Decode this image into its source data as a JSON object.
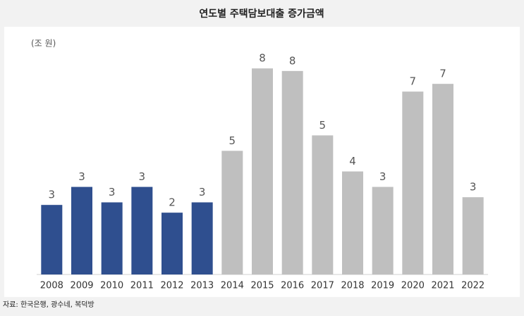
{
  "chart_data": {
    "type": "bar",
    "title": "연도별 주택담보대출 증가금액",
    "unit_label": "(조 원)",
    "source": "자료: 한국은행, 광수네, 복덕방",
    "categories": [
      "2008",
      "2009",
      "2010",
      "2011",
      "2012",
      "2013",
      "2014",
      "2015",
      "2016",
      "2017",
      "2018",
      "2019",
      "2020",
      "2021",
      "2022"
    ],
    "series": [
      {
        "values": [
          2.7,
          3.4,
          2.8,
          3.4,
          2.4,
          2.8,
          4.8,
          8.0,
          7.9,
          5.4,
          4.0,
          3.4,
          7.1,
          7.4,
          3.0
        ],
        "value_labels": [
          "3",
          "3",
          "3",
          "3",
          "2",
          "3",
          "5",
          "8",
          "8",
          "5",
          "4",
          "3",
          "7",
          "7",
          "3"
        ],
        "colors": [
          "#2f4f8f",
          "#2f4f8f",
          "#2f4f8f",
          "#2f4f8f",
          "#2f4f8f",
          "#2f4f8f",
          "#bfbfbf",
          "#bfbfbf",
          "#bfbfbf",
          "#bfbfbf",
          "#bfbfbf",
          "#bfbfbf",
          "#bfbfbf",
          "#bfbfbf",
          "#bfbfbf"
        ]
      }
    ],
    "grid": false
  }
}
